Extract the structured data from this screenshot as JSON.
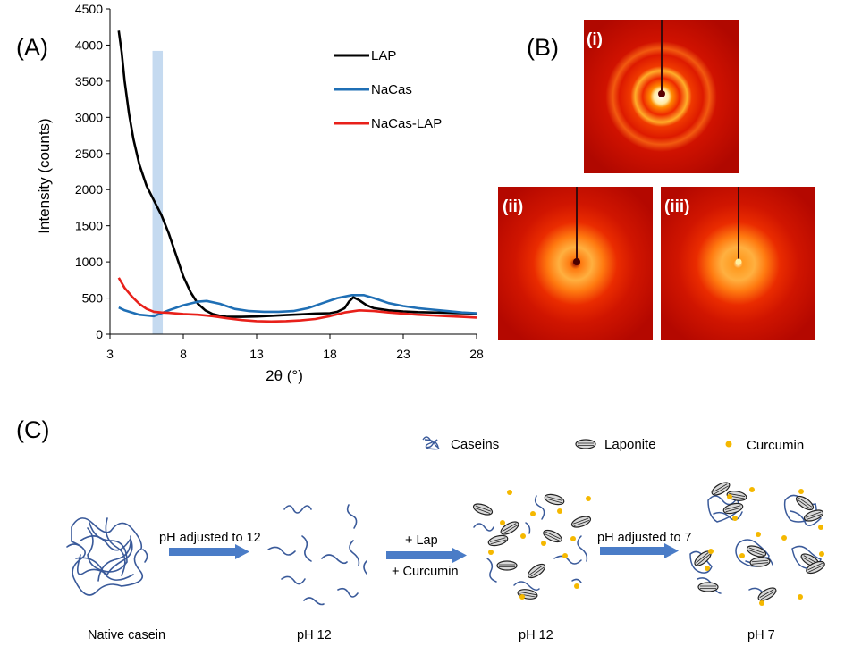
{
  "panels": {
    "a": "(A)",
    "b": "(B)",
    "c": "(C)"
  },
  "chart_data": {
    "type": "line",
    "xlabel": "2θ (°)",
    "ylabel": "Intensity (counts)",
    "xlim": [
      3,
      28
    ],
    "ylim": [
      0,
      4500
    ],
    "xticks": [
      3,
      8,
      13,
      18,
      23,
      28
    ],
    "yticks": [
      0,
      500,
      1000,
      1500,
      2000,
      2500,
      3000,
      3500,
      4000,
      4500
    ],
    "legend_position": "top-right",
    "highlight_band": {
      "x": [
        5.9,
        6.6
      ],
      "y": [
        0,
        3920
      ],
      "color": "#c5daf0"
    },
    "series": [
      {
        "name": "LAP",
        "color": "#000000",
        "x": [
          3.6,
          3.8,
          4.0,
          4.3,
          4.6,
          5.0,
          5.5,
          6.0,
          6.5,
          7.0,
          7.5,
          8.0,
          8.5,
          9.0,
          9.5,
          10.0,
          10.5,
          11.0,
          12.0,
          13.0,
          14.0,
          15.0,
          16.0,
          17.0,
          18.0,
          18.5,
          19.0,
          19.3,
          19.6,
          20.0,
          20.5,
          21.0,
          22.0,
          23.0,
          24.0,
          25.0,
          26.0,
          27.0,
          28.0
        ],
        "y": [
          4200,
          3900,
          3500,
          3050,
          2700,
          2350,
          2050,
          1850,
          1650,
          1400,
          1100,
          800,
          580,
          420,
          330,
          280,
          255,
          240,
          240,
          245,
          255,
          265,
          275,
          285,
          290,
          310,
          360,
          450,
          510,
          470,
          400,
          360,
          330,
          315,
          305,
          300,
          295,
          290,
          285
        ]
      },
      {
        "name": "NaCas",
        "color": "#1f6fb5",
        "x": [
          3.6,
          4.0,
          5.0,
          6.0,
          7.0,
          8.0,
          9.0,
          9.6,
          10.5,
          11.5,
          12.5,
          13.5,
          14.5,
          15.5,
          16.5,
          17.5,
          18.5,
          19.5,
          20.3,
          21.0,
          22.0,
          23.0,
          24.0,
          25.0,
          26.0,
          27.0,
          28.0
        ],
        "y": [
          370,
          330,
          270,
          250,
          330,
          400,
          450,
          460,
          420,
          350,
          320,
          310,
          310,
          320,
          360,
          430,
          500,
          540,
          540,
          500,
          430,
          390,
          360,
          340,
          320,
          300,
          290
        ]
      },
      {
        "name": "NaCas-LAP",
        "color": "#e8201a",
        "x": [
          3.6,
          4.0,
          4.5,
          5.0,
          5.5,
          6.0,
          6.5,
          7.0,
          8.0,
          9.0,
          10.0,
          11.0,
          12.0,
          13.0,
          14.0,
          15.0,
          16.0,
          17.0,
          18.0,
          19.0,
          20.0,
          21.0,
          22.0,
          23.0,
          24.0,
          25.0,
          26.0,
          27.0,
          28.0
        ],
        "y": [
          780,
          640,
          520,
          420,
          350,
          310,
          300,
          295,
          280,
          270,
          250,
          220,
          195,
          180,
          175,
          180,
          190,
          210,
          250,
          300,
          330,
          320,
          300,
          285,
          270,
          260,
          250,
          240,
          230
        ]
      }
    ]
  },
  "saxs_labels": [
    "(i)",
    "(ii)",
    "(iii)"
  ],
  "schematic": {
    "legend": {
      "caseins": "Caseins",
      "laponite": "Laponite",
      "curcumin": "Curcumin"
    },
    "steps": [
      "Native casein",
      "pH 12",
      "pH 12",
      "pH 7"
    ],
    "arrows": [
      "pH adjusted to 12",
      "+ Lap",
      "+ Curcumin",
      "pH adjusted to 7"
    ],
    "colors": {
      "chain": "#3a5a9a",
      "arrow": "#4a7cc7",
      "curcumin": "#f5b800",
      "laponite_fill": "#d9d9d9"
    }
  }
}
